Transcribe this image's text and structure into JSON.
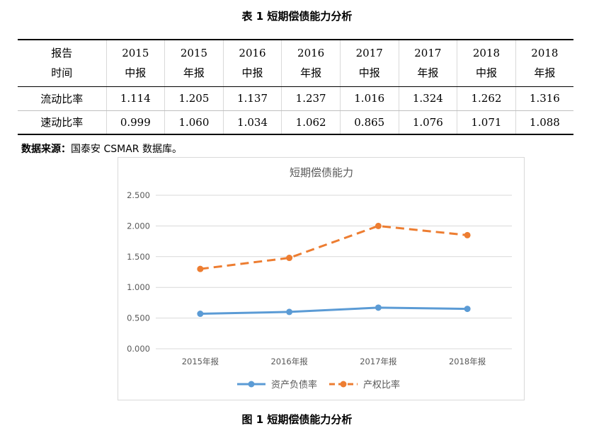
{
  "table": {
    "title": "表 1  短期偿债能力分析",
    "header_label": [
      "报告",
      "时间"
    ],
    "columns": [
      {
        "year": "2015",
        "type": "中报"
      },
      {
        "year": "2015",
        "type": "年报"
      },
      {
        "year": "2016",
        "type": "中报"
      },
      {
        "year": "2016",
        "type": "年报"
      },
      {
        "year": "2017",
        "type": "中报"
      },
      {
        "year": "2017",
        "type": "年报"
      },
      {
        "year": "2018",
        "type": "中报"
      },
      {
        "year": "2018",
        "type": "年报"
      }
    ],
    "rows": [
      {
        "label": "流动比率",
        "values": [
          "1.114",
          "1.205",
          "1.137",
          "1.237",
          "1.016",
          "1.324",
          "1.262",
          "1.316"
        ]
      },
      {
        "label": "速动比率",
        "values": [
          "0.999",
          "1.060",
          "1.034",
          "1.062",
          "0.865",
          "1.076",
          "1.071",
          "1.088"
        ]
      }
    ]
  },
  "source": {
    "label": "数据来源：",
    "text": "国泰安 CSMAR 数据库。"
  },
  "chart_data": {
    "type": "line",
    "title": "短期偿债能力",
    "categories": [
      "2015年报",
      "2016年报",
      "2017年报",
      "2018年报"
    ],
    "series": [
      {
        "name": "资产负债率",
        "values": [
          0.57,
          0.6,
          0.67,
          0.65
        ],
        "color": "#5b9bd5",
        "style": "solid"
      },
      {
        "name": "产权比率",
        "values": [
          1.3,
          1.48,
          2.0,
          1.85
        ],
        "color": "#ed7d31",
        "style": "dashed"
      }
    ],
    "yticks": [
      "0.000",
      "0.500",
      "1.000",
      "1.500",
      "2.000",
      "2.500"
    ],
    "ylim": [
      0,
      2.5
    ],
    "grid": true,
    "legend": "bottom"
  },
  "figure_caption": "图 1  短期偿债能力分析"
}
